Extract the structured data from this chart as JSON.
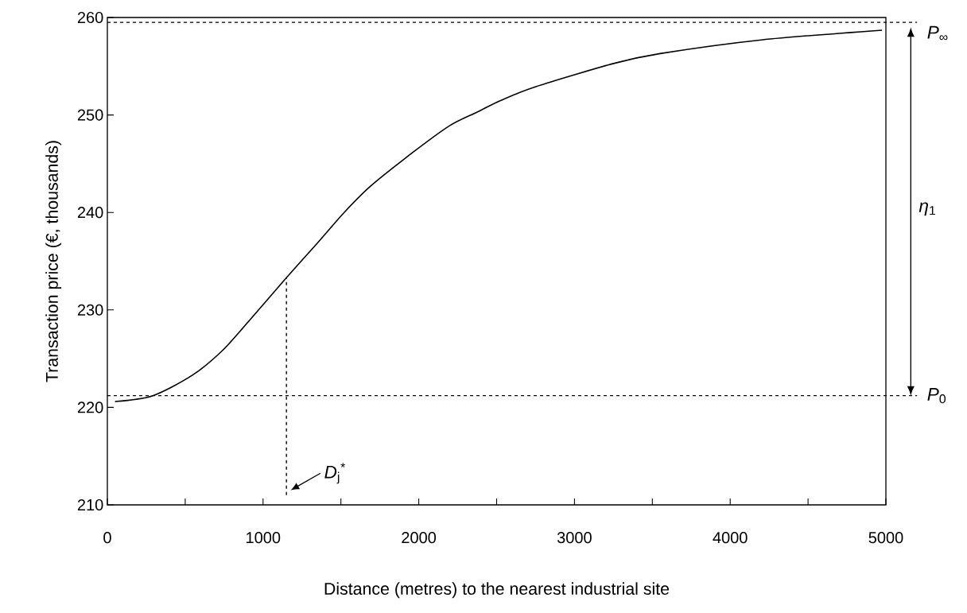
{
  "chart_data": {
    "type": "line",
    "xlabel": "Distance (metres) to the nearest industrial site",
    "ylabel": "Transaction price (€, thousands)",
    "x": [
      49,
      292,
      546,
      737,
      906,
      1150,
      1351,
      1521,
      1690,
      1965,
      2198,
      2375,
      2528,
      2752,
      3256,
      3550,
      4200,
      4975
    ],
    "series": [
      {
        "color": "#000000",
        "values": [
          220.6,
          221.2,
          223.3,
          225.8,
          228.8,
          233.3,
          236.9,
          240.0,
          242.7,
          246.2,
          248.9,
          250.3,
          251.5,
          252.9,
          255.3,
          256.3,
          257.7,
          258.7
        ]
      }
    ],
    "xlim": [
      0,
      5000
    ],
    "ylim": [
      210,
      260
    ],
    "xticks": [
      0,
      {
        "value": 500,
        "label": null
      },
      1000,
      {
        "value": 1500,
        "label": null
      },
      2000,
      {
        "value": 2500,
        "label": null
      },
      3000,
      {
        "value": 3500,
        "label": null
      },
      4000,
      {
        "value": 4500,
        "label": null
      },
      5000
    ],
    "yticks": [
      210,
      220,
      230,
      240,
      250,
      260
    ],
    "ref_lines": [
      {
        "axis": "y",
        "value": 259.5,
        "label": "*P*$_{∞}$",
        "line_style": "dashed"
      },
      {
        "axis": "y",
        "value": 221.2,
        "label": "*P*$_{0}$",
        "line_style": "dashed"
      },
      {
        "axis": "x",
        "value": 1150,
        "line_style": "dashed",
        "label": "*D*$_{j}$$^{*}$"
      }
    ],
    "annotations": [
      "*η*$_{1}$"
    ],
    "marker": "none",
    "line_style": "solid"
  }
}
